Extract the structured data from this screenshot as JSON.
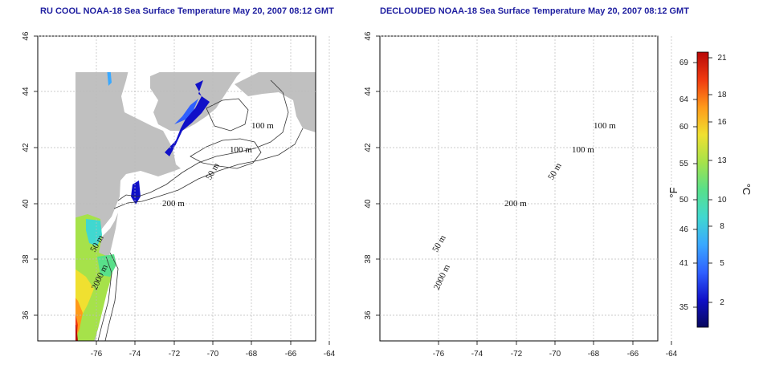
{
  "titles": {
    "left": "RU COOL NOAA-18 Sea Surface Temperature May 20, 2007 08:12 GMT",
    "right": "DECLOUDED NOAA-18 Sea Surface Temperature May 20, 2007 08:12 GMT"
  },
  "axes": {
    "lon_ticks": [
      "-76",
      "-74",
      "-72",
      "-70",
      "-68",
      "-66",
      "-64"
    ],
    "lat_ticks": [
      "46",
      "44",
      "42",
      "40",
      "38",
      "36"
    ]
  },
  "contour_labels": {
    "left": [
      "100 m",
      "100 m",
      "50 m",
      "200 m",
      "50 m",
      "2000 m"
    ],
    "right": [
      "100 m",
      "100 m",
      "50 m",
      "200 m",
      "50 m",
      "2000 m"
    ]
  },
  "colorbar": {
    "fahrenheit_unit": "°F",
    "celsius_unit": "°C",
    "fahrenheit_ticks": [
      "69",
      "64",
      "60",
      "55",
      "50",
      "46",
      "41",
      "35"
    ],
    "celsius_ticks": [
      "21",
      "18",
      "16",
      "13",
      "10",
      "8",
      "5",
      "2"
    ],
    "colors": [
      "#08085e",
      "#1010c8",
      "#2f60ff",
      "#3aa8ff",
      "#40d8d0",
      "#58e08a",
      "#a6e24a",
      "#f0e030",
      "#ff9a1a",
      "#f03a10",
      "#b80808"
    ]
  },
  "colors": {
    "land": "#c0c0c0",
    "ocean": "#ffffff",
    "grid": "#bbbbbb",
    "title": "#1e1ea0"
  }
}
